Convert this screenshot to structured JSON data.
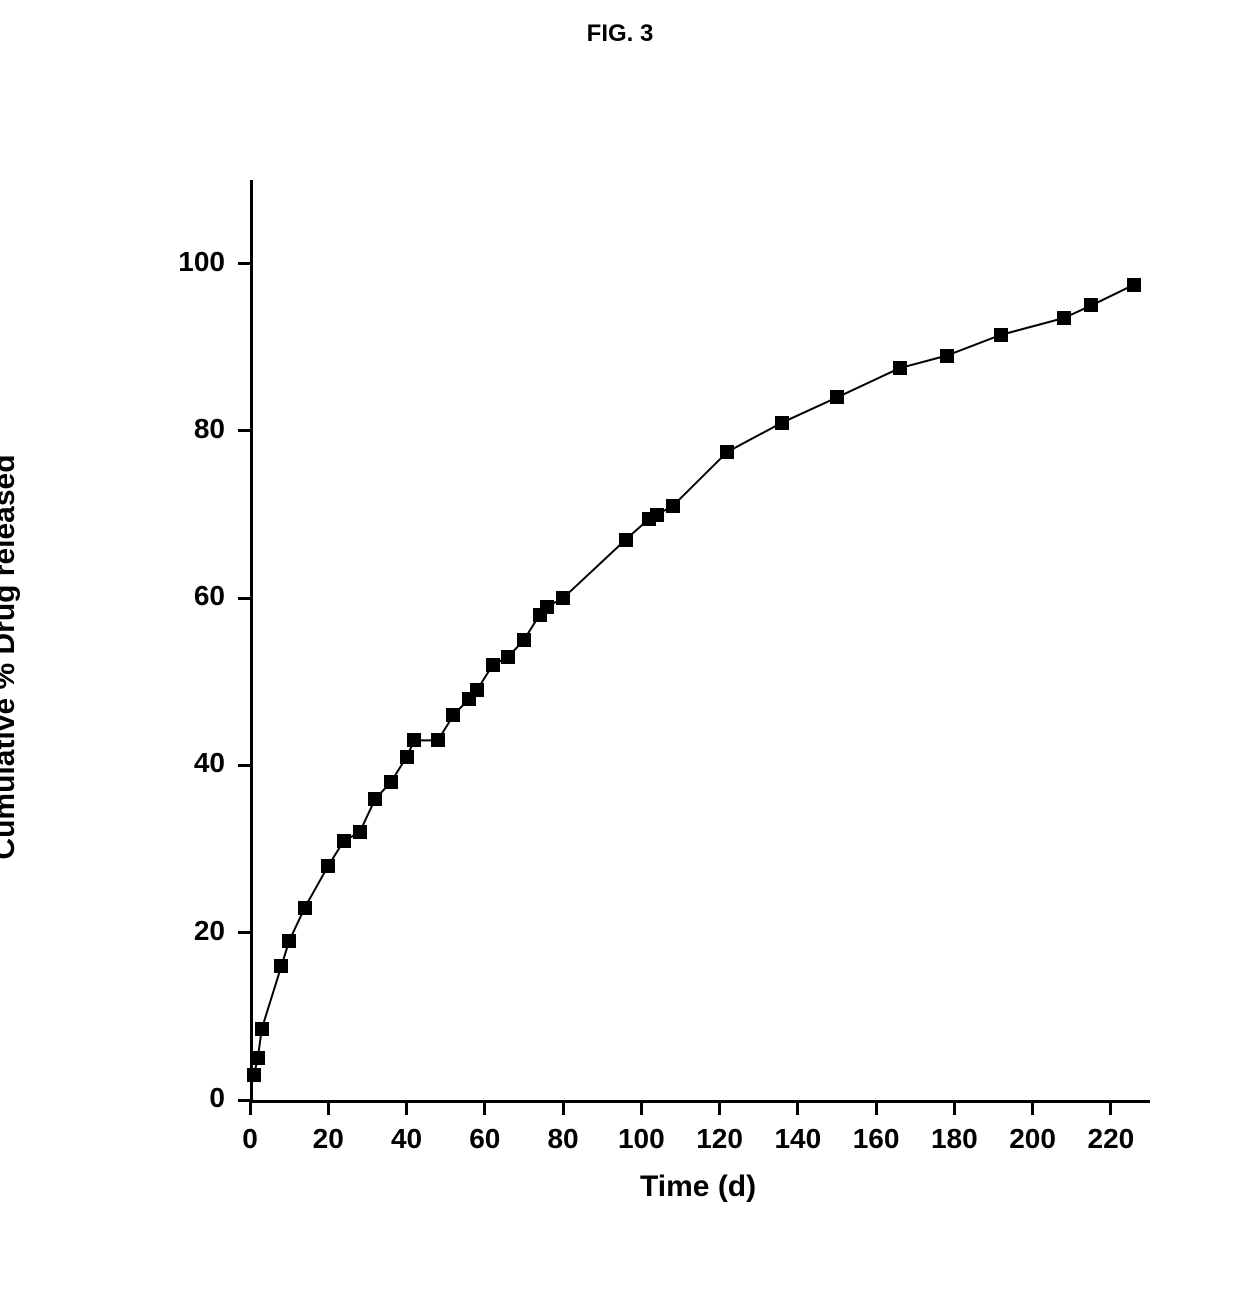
{
  "figure": {
    "title": "FIG. 3"
  },
  "chart": {
    "type": "scatter-line",
    "xlabel": "Time (d)",
    "ylabel": "Cumulative % Drug released",
    "xlim": [
      0,
      230
    ],
    "ylim": [
      0,
      110
    ],
    "x_ticks": [
      0,
      20,
      40,
      60,
      80,
      100,
      120,
      140,
      160,
      180,
      200,
      220
    ],
    "y_ticks": [
      0,
      20,
      40,
      60,
      80,
      100
    ],
    "x_tick_step": 20,
    "y_tick_step": 20,
    "background_color": "#ffffff",
    "axis_color": "#000000",
    "marker_color": "#000000",
    "line_color": "#000000",
    "marker_style": "square",
    "marker_size": 14,
    "line_width": 2,
    "title_fontsize": 24,
    "label_fontsize": 30,
    "tick_fontsize": 28,
    "font_weight": "bold",
    "data": [
      {
        "x": 1,
        "y": 3
      },
      {
        "x": 2,
        "y": 5
      },
      {
        "x": 3,
        "y": 8.5
      },
      {
        "x": 8,
        "y": 16
      },
      {
        "x": 10,
        "y": 19
      },
      {
        "x": 14,
        "y": 23
      },
      {
        "x": 20,
        "y": 28
      },
      {
        "x": 24,
        "y": 31
      },
      {
        "x": 28,
        "y": 32
      },
      {
        "x": 32,
        "y": 36
      },
      {
        "x": 36,
        "y": 38
      },
      {
        "x": 40,
        "y": 41
      },
      {
        "x": 42,
        "y": 43
      },
      {
        "x": 48,
        "y": 43
      },
      {
        "x": 52,
        "y": 46
      },
      {
        "x": 56,
        "y": 48
      },
      {
        "x": 58,
        "y": 49
      },
      {
        "x": 62,
        "y": 52
      },
      {
        "x": 66,
        "y": 53
      },
      {
        "x": 70,
        "y": 55
      },
      {
        "x": 74,
        "y": 58
      },
      {
        "x": 76,
        "y": 59
      },
      {
        "x": 80,
        "y": 60
      },
      {
        "x": 96,
        "y": 67
      },
      {
        "x": 102,
        "y": 69.5
      },
      {
        "x": 104,
        "y": 70
      },
      {
        "x": 108,
        "y": 71
      },
      {
        "x": 122,
        "y": 77.5
      },
      {
        "x": 136,
        "y": 81
      },
      {
        "x": 150,
        "y": 84
      },
      {
        "x": 166,
        "y": 87.5
      },
      {
        "x": 178,
        "y": 89
      },
      {
        "x": 192,
        "y": 91.5
      },
      {
        "x": 208,
        "y": 93.5
      },
      {
        "x": 215,
        "y": 95
      },
      {
        "x": 226,
        "y": 97.5
      }
    ]
  }
}
